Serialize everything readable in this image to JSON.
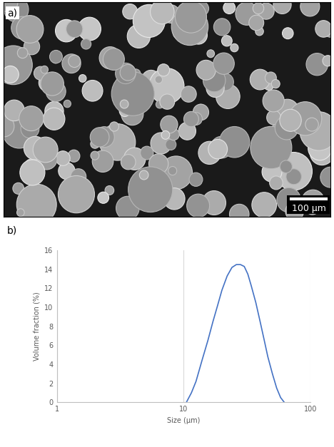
{
  "panel_labels": [
    "a)",
    "b)"
  ],
  "scale_bar_label": "100 µm",
  "chart_data": {
    "type": "line",
    "x_label": "Size (µm)",
    "y_label": "Volume fraction (%)",
    "log": "x",
    "grid": "x",
    "color": "#4472c4",
    "x": [
      10.5,
      11.5,
      12.5,
      14,
      15.5,
      17,
      18.5,
      20,
      22,
      24,
      26,
      28,
      30,
      32,
      34,
      37,
      40,
      43,
      46,
      50,
      54,
      58,
      62
    ],
    "values": [
      0,
      1,
      2.2,
      4.5,
      6.5,
      8.5,
      10.2,
      11.8,
      13.3,
      14.2,
      14.5,
      14.5,
      14.3,
      13.5,
      12.3,
      10.5,
      8.5,
      6.6,
      4.8,
      3.0,
      1.5,
      0.5,
      0
    ],
    "xlim": [
      1,
      100
    ],
    "xticks": [
      1,
      10,
      100
    ],
    "ylim": [
      0,
      16
    ],
    "yticks": [
      0,
      2,
      4,
      6,
      8,
      10,
      12,
      14,
      16
    ]
  }
}
